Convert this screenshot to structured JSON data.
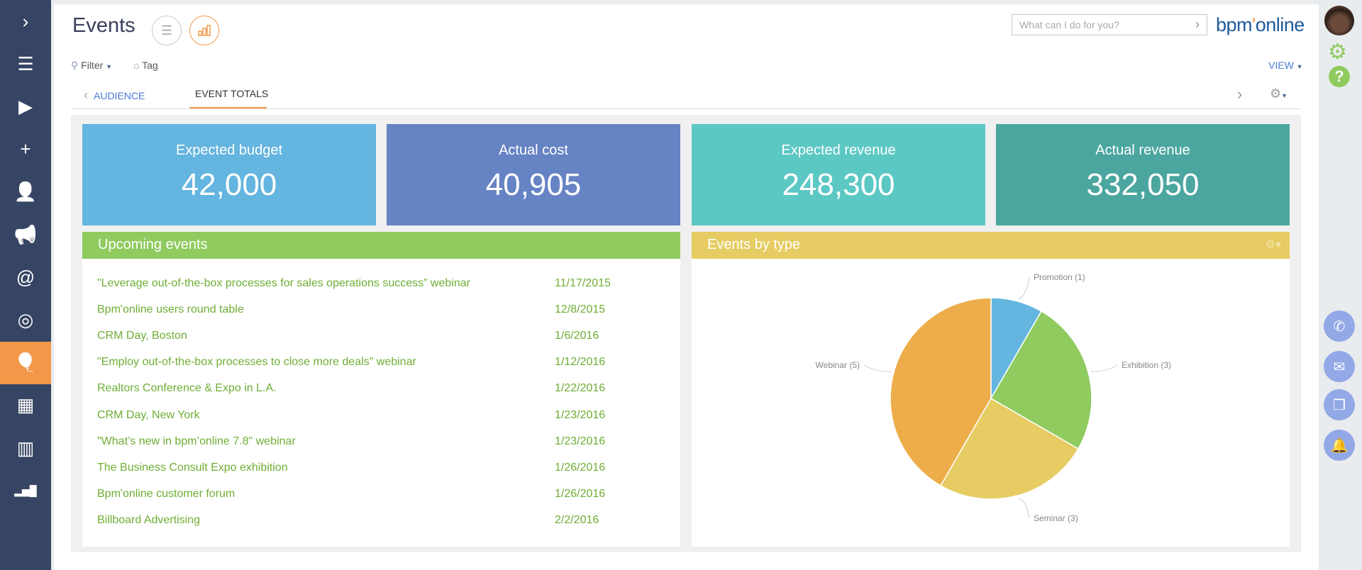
{
  "sidebar": {
    "items": [
      {
        "name": "expand",
        "icon": "chevron-right-icon",
        "glyph": "›"
      },
      {
        "name": "menu",
        "icon": "hamburger-icon",
        "glyph": "☰"
      },
      {
        "name": "processes",
        "icon": "play-circle-icon",
        "glyph": "▶"
      },
      {
        "name": "add",
        "icon": "plus-icon",
        "glyph": "+"
      },
      {
        "name": "contacts",
        "icon": "person-icon",
        "glyph": "👤"
      },
      {
        "name": "campaigns",
        "icon": "megaphone-icon",
        "glyph": "📢"
      },
      {
        "name": "email",
        "icon": "at-icon",
        "glyph": "@"
      },
      {
        "name": "leads",
        "icon": "target-icon",
        "glyph": "◎"
      },
      {
        "name": "events",
        "icon": "balloon-icon",
        "glyph": "🎈",
        "active": true
      },
      {
        "name": "accounts-contacts",
        "icon": "contact-building-icon",
        "glyph": "▦"
      },
      {
        "name": "accounts",
        "icon": "building-icon",
        "glyph": "▥"
      },
      {
        "name": "dashboards",
        "icon": "bar-chart-icon",
        "glyph": "▂▅█"
      }
    ]
  },
  "header": {
    "title": "Events",
    "search_placeholder": "What can I do for you?",
    "logo": "bpm'online",
    "logo_parts": [
      "bpm",
      "'",
      "online"
    ]
  },
  "toolbar": {
    "filter": "Filter",
    "tag": "Tag",
    "view": "VIEW"
  },
  "tabs": [
    {
      "label": "AUDIENCE"
    },
    {
      "label": "EVENT TOTALS",
      "active": true
    }
  ],
  "tiles": [
    {
      "label": "Expected budget",
      "value": "42,000",
      "color": "#64b5df"
    },
    {
      "label": "Actual cost",
      "value": "40,905",
      "color": "#6683c4"
    },
    {
      "label": "Expected revenue",
      "value": "248,300",
      "color": "#5cc8c4"
    },
    {
      "label": "Actual revenue",
      "value": "332,050",
      "color": "#4ba6a0"
    }
  ],
  "upcoming": {
    "title": "Upcoming events",
    "color": "#8fcb5f",
    "rows": [
      {
        "name": "\"Leverage out-of-the-box processes for sales operations success” webinar",
        "date": "11/17/2015"
      },
      {
        "name": "Bpm'online users round table",
        "date": "12/8/2015"
      },
      {
        "name": "CRM Day, Boston",
        "date": "1/6/2016"
      },
      {
        "name": "\"Employ out-of-the-box processes to close more deals\" webinar",
        "date": "1/12/2016"
      },
      {
        "name": "Realtors Conference & Expo in L.A.",
        "date": "1/22/2016"
      },
      {
        "name": "CRM Day, New York",
        "date": "1/23/2016"
      },
      {
        "name": "\"What’s new in bpm’online 7.8\" webinar",
        "date": "1/23/2016"
      },
      {
        "name": "The Business Consult Expo exhibition",
        "date": "1/26/2016"
      },
      {
        "name": "Bpm'online customer forum",
        "date": "1/26/2016"
      },
      {
        "name": "Billboard Advertising",
        "date": "2/2/2016"
      }
    ]
  },
  "chart_data": {
    "type": "pie",
    "title": "Events by type",
    "header_color": "#e6cc62",
    "slices": [
      {
        "label": "Promotion (1)",
        "name": "Promotion",
        "value": 1,
        "color": "#64b5df"
      },
      {
        "label": "Exhibition (3)",
        "name": "Exhibition",
        "value": 3,
        "color": "#8fcb5f"
      },
      {
        "label": "Seminar (3)",
        "name": "Seminar",
        "value": 3,
        "color": "#e6cc62"
      },
      {
        "label": "Webinar (5)",
        "name": "Webinar",
        "value": 5,
        "color": "#edad4a"
      }
    ]
  }
}
